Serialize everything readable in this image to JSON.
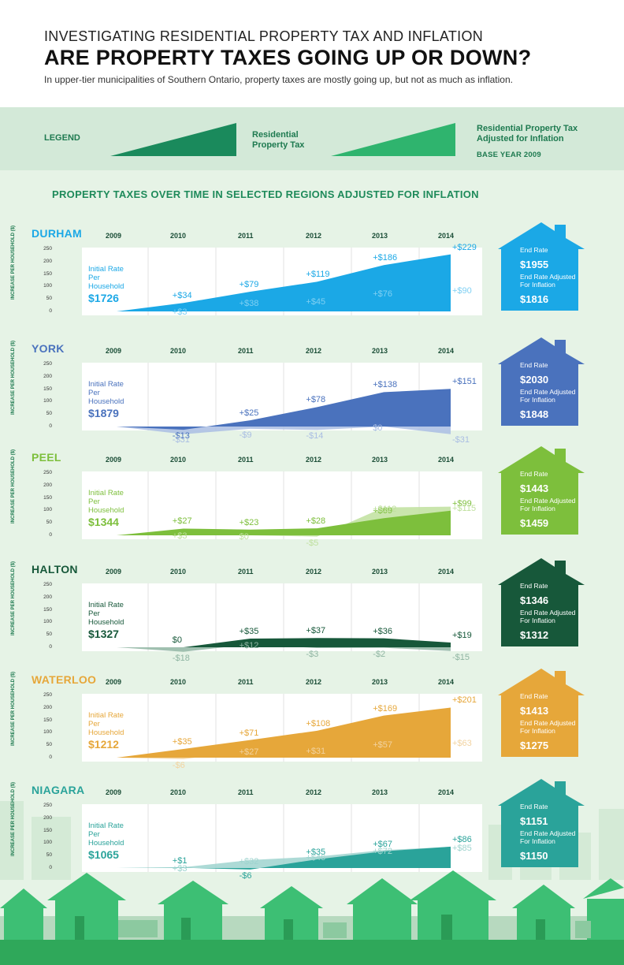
{
  "header": {
    "kicker": "INVESTIGATING RESIDENTIAL PROPERTY TAX AND INFLATION",
    "headline": "ARE PROPERTY TAXES GOING UP OR DOWN?",
    "deck": "In upper-tier municipalities of Southern Ontario, property taxes are mostly going up, but not as much as inflation."
  },
  "legend": {
    "label": "LEGEND",
    "item1": "Residential Property Tax",
    "item2": "Residential Property Tax Adjusted for Inflation",
    "base_year": "BASE YEAR 2009",
    "color1": "#1a8a5c",
    "color2": "#2fb46e"
  },
  "section_title": "PROPERTY TAXES OVER TIME IN SELECTED REGIONS ADJUSTED FOR INFLATION",
  "axis": {
    "ytitle": "INCREASE PER HOUSEHOLD ($)",
    "ticks": [
      "250",
      "200",
      "150",
      "100",
      "50",
      "0"
    ]
  },
  "chart_data": [
    {
      "type": "area",
      "region": "DURHAM",
      "x": [
        "2009",
        "2010",
        "2011",
        "2012",
        "2013",
        "2014"
      ],
      "series": [
        {
          "name": "Residential Property Tax",
          "values": [
            0,
            34,
            79,
            119,
            186,
            229
          ],
          "labels": [
            "",
            "+$34",
            "+$79",
            "+$119",
            "+$186",
            "+$229"
          ]
        },
        {
          "name": "Residential Property Tax Adjusted for Inflation",
          "values": [
            0,
            3,
            38,
            45,
            76,
            90
          ],
          "labels": [
            "",
            "+$3",
            "+$38",
            "+$45",
            "+$76",
            "+$90"
          ]
        }
      ],
      "ylim": [
        0,
        250
      ],
      "initial_label": "Initial Rate Per Household",
      "initial_rate": "$1726",
      "end_rate_label": "End Rate",
      "end_rate": "$1955",
      "end_adj_label": "End Rate Adjusted For Inflation",
      "end_adj": "$1816",
      "color": "#1ba8e6",
      "color_light": "#7fd0f3"
    },
    {
      "type": "area",
      "region": "YORK",
      "x": [
        "2009",
        "2010",
        "2011",
        "2012",
        "2013",
        "2014"
      ],
      "series": [
        {
          "name": "Residential Property Tax",
          "values": [
            0,
            -13,
            25,
            78,
            138,
            151
          ],
          "labels": [
            "",
            "-$13",
            "+$25",
            "+$78",
            "+$138",
            "+$151"
          ]
        },
        {
          "name": "Residential Property Tax Adjusted for Inflation",
          "values": [
            0,
            -31,
            -9,
            -14,
            0,
            -31
          ],
          "labels": [
            "",
            "-$31",
            "-$9",
            "-$14",
            "$0",
            "-$31"
          ]
        }
      ],
      "ylim": [
        0,
        250
      ],
      "initial_label": "Initial Rate Per Household",
      "initial_rate": "$1879",
      "end_rate_label": "End Rate",
      "end_rate": "$2030",
      "end_adj_label": "End Rate Adjusted For Inflation",
      "end_adj": "$1848",
      "color": "#4a72bd",
      "color_light": "#a9bde3"
    },
    {
      "type": "area",
      "region": "PEEL",
      "x": [
        "2009",
        "2010",
        "2011",
        "2012",
        "2013",
        "2014"
      ],
      "series": [
        {
          "name": "Residential Property Tax",
          "values": [
            0,
            27,
            23,
            28,
            69,
            99
          ],
          "labels": [
            "",
            "+$27",
            "+$23",
            "+$28",
            "+$69",
            "+$99"
          ]
        },
        {
          "name": "Residential Property Tax Adjusted for Inflation",
          "values": [
            0,
            3,
            0,
            -5,
            112,
            115
          ],
          "labels": [
            "",
            "+$3",
            "$0",
            "-$5",
            "+$112",
            "+$115"
          ]
        }
      ],
      "ylim": [
        0,
        250
      ],
      "initial_label": "Initial Rate Per Household",
      "initial_rate": "$1344",
      "end_rate_label": "End Rate",
      "end_rate": "$1443",
      "end_adj_label": "End Rate Adjusted For Inflation",
      "end_adj": "$1459",
      "color": "#7dbf3c",
      "color_light": "#bfe09e"
    },
    {
      "type": "area",
      "region": "HALTON",
      "x": [
        "2009",
        "2010",
        "2011",
        "2012",
        "2013",
        "2014"
      ],
      "series": [
        {
          "name": "Residential Property Tax",
          "values": [
            0,
            0,
            35,
            37,
            36,
            19
          ],
          "labels": [
            "",
            "$0",
            "+$35",
            "+$37",
            "+$36",
            "+$19"
          ]
        },
        {
          "name": "Residential Property Tax Adjusted for Inflation",
          "values": [
            0,
            -18,
            12,
            -3,
            -2,
            -15
          ],
          "labels": [
            "",
            "-$18",
            "+$12",
            "-$3",
            "-$2",
            "-$15"
          ]
        }
      ],
      "ylim": [
        0,
        250
      ],
      "initial_label": "Initial Rate Per Household",
      "initial_rate": "$1327",
      "end_rate_label": "End Rate",
      "end_rate": "$1346",
      "end_adj_label": "End Rate Adjusted For Inflation",
      "end_adj": "$1312",
      "color": "#17583a",
      "color_light": "#8fb5a2"
    },
    {
      "type": "area",
      "region": "WATERLOO",
      "x": [
        "2009",
        "2010",
        "2011",
        "2012",
        "2013",
        "2014"
      ],
      "series": [
        {
          "name": "Residential Property Tax",
          "values": [
            0,
            35,
            71,
            108,
            169,
            201
          ],
          "labels": [
            "",
            "+$35",
            "+$71",
            "+$108",
            "+$169",
            "+$201"
          ]
        },
        {
          "name": "Residential Property Tax Adjusted for Inflation",
          "values": [
            0,
            -6,
            27,
            31,
            57,
            63
          ],
          "labels": [
            "",
            "-$6",
            "+$27",
            "+$31",
            "+$57",
            "+$63"
          ]
        }
      ],
      "ylim": [
        0,
        250
      ],
      "initial_label": "Initial Rate Per Household",
      "initial_rate": "$1212",
      "end_rate_label": "End Rate",
      "end_rate": "$1413",
      "end_adj_label": "End Rate Adjusted For Inflation",
      "end_adj": "$1275",
      "color": "#e6a73a",
      "color_light": "#f2d3a0"
    },
    {
      "type": "area",
      "region": "NIAGARA",
      "x": [
        "2009",
        "2010",
        "2011",
        "2012",
        "2013",
        "2014"
      ],
      "series": [
        {
          "name": "Residential Property Tax",
          "values": [
            0,
            1,
            -6,
            35,
            67,
            86
          ],
          "labels": [
            "",
            "+$1",
            "-$6",
            "+$35",
            "+$67",
            "+$86"
          ]
        },
        {
          "name": "Residential Property Tax Adjusted for Inflation",
          "values": [
            0,
            3,
            32,
            46,
            72,
            85
          ],
          "labels": [
            "",
            "+$3",
            "+$32",
            "+$46",
            "+$72",
            "+$85"
          ]
        }
      ],
      "ylim": [
        0,
        250
      ],
      "initial_label": "Initial Rate Per Household",
      "initial_rate": "$1065",
      "end_rate_label": "End Rate",
      "end_rate": "$1151",
      "end_adj_label": "End Rate Adjusted For Inflation",
      "end_adj": "$1150",
      "color": "#2aa39a",
      "color_light": "#9fd4cf"
    }
  ]
}
